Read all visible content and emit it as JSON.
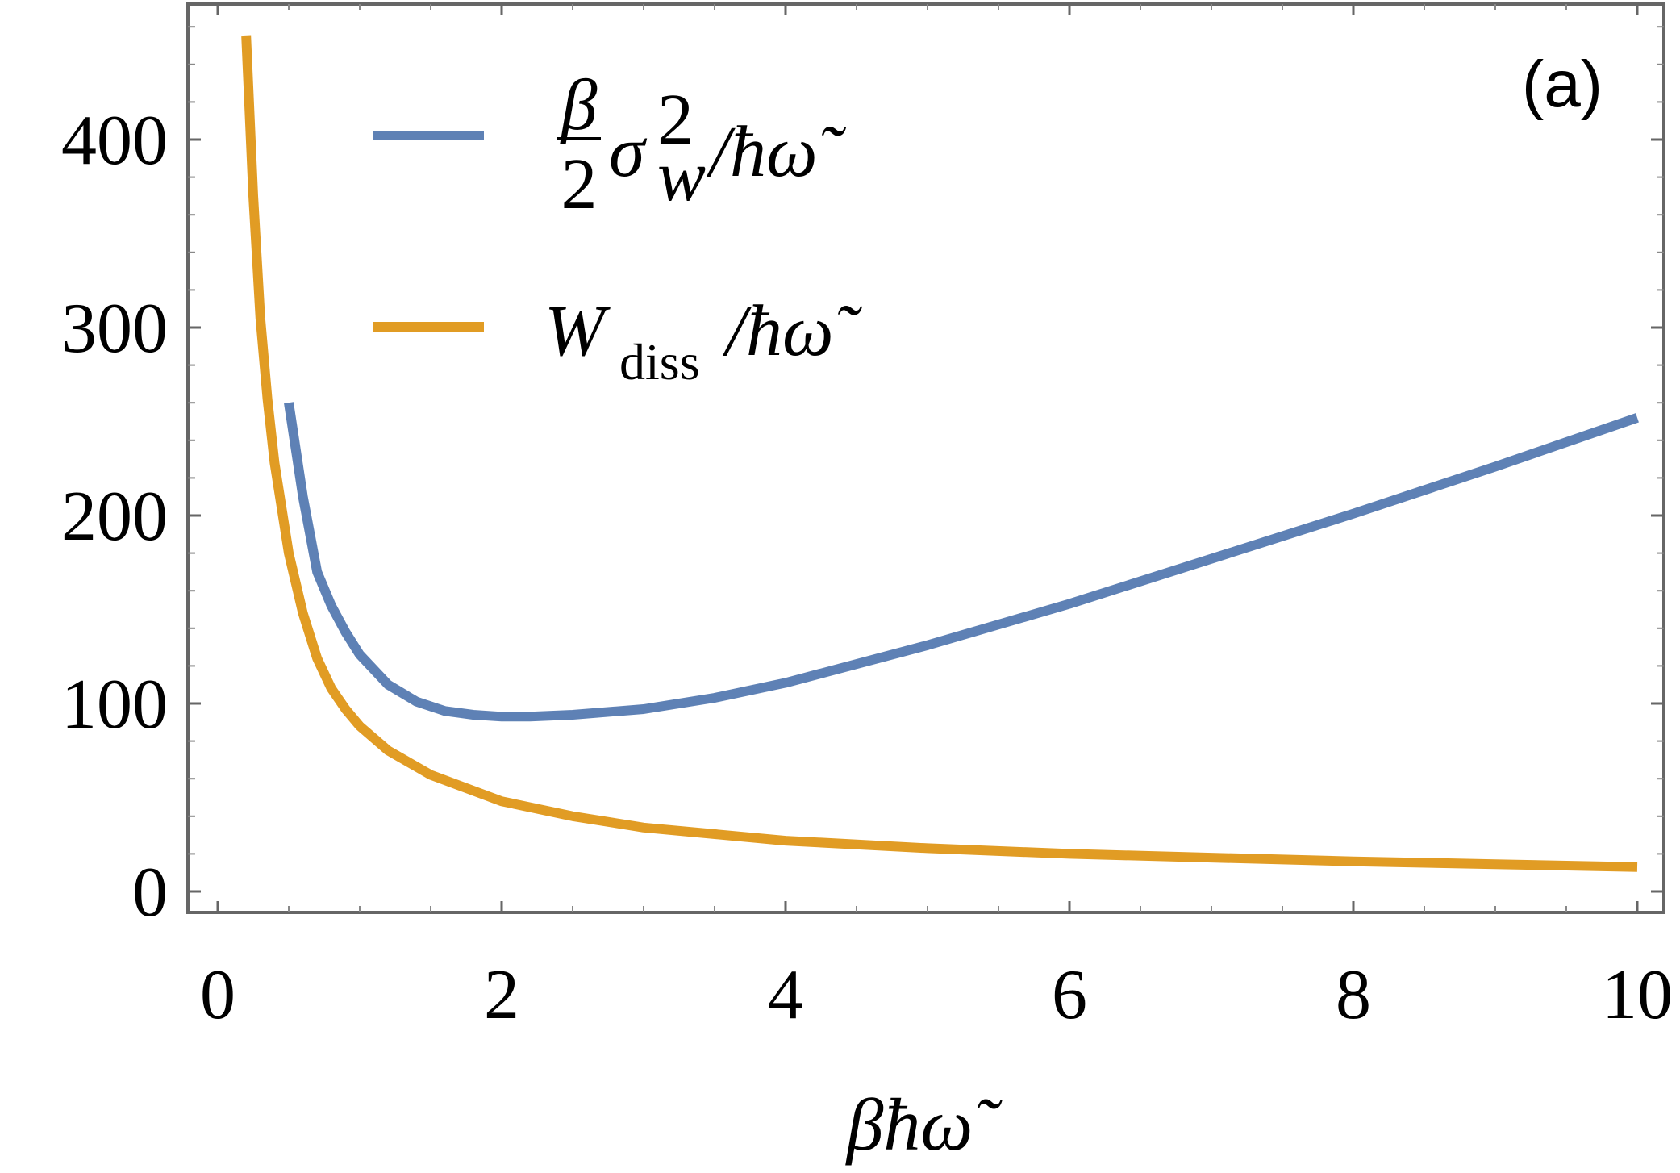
{
  "chart_data": {
    "type": "line",
    "panel_label": "(a)",
    "xlabel": "βħω̃",
    "ylabel": "",
    "xlim": [
      0,
      10
    ],
    "ylim": [
      -25,
      465
    ],
    "x_ticks": [
      0,
      2,
      4,
      6,
      8,
      10
    ],
    "y_ticks": [
      0,
      100,
      200,
      300,
      400
    ],
    "x_tick_labels": [
      "0",
      "2",
      "4",
      "6",
      "8",
      "10"
    ],
    "y_tick_labels": [
      "0",
      "100",
      "200",
      "300",
      "400"
    ],
    "grid": false,
    "legend_position": "top-left",
    "series": [
      {
        "name": "β/2 σ_w² / ħω̃",
        "legend_label": {
          "frac_num": "β",
          "frac_den": "2",
          "base": "σ",
          "sup": "2",
          "sub": "w",
          "rest": "/ħω̃"
        },
        "color": "#5e81b5",
        "x": [
          0.5,
          0.6,
          0.7,
          0.8,
          0.9,
          1.0,
          1.2,
          1.4,
          1.6,
          1.8,
          2.0,
          2.2,
          2.5,
          3.0,
          3.5,
          4.0,
          5.0,
          6.0,
          7.0,
          8.0,
          9.0,
          10.0
        ],
        "y": [
          260,
          210,
          170,
          152,
          138,
          126,
          110,
          101,
          96,
          94,
          93,
          93,
          94,
          97,
          103,
          111,
          131,
          153,
          177,
          201,
          226,
          252
        ]
      },
      {
        "name": "W_diss / ħω̃",
        "legend_label": {
          "base": "W",
          "sub": "diss",
          "rest": "/ħω̃"
        },
        "color": "#e19c24",
        "x": [
          0.2,
          0.25,
          0.3,
          0.35,
          0.4,
          0.5,
          0.6,
          0.7,
          0.8,
          0.9,
          1.0,
          1.2,
          1.5,
          2.0,
          2.5,
          3.0,
          4.0,
          5.0,
          6.0,
          7.0,
          8.0,
          9.0,
          10.0
        ],
        "y": [
          455,
          370,
          305,
          262,
          228,
          180,
          148,
          124,
          108,
          97,
          88,
          75,
          62,
          48,
          40,
          34,
          27,
          23,
          20,
          18,
          16,
          14.5,
          13
        ]
      }
    ]
  }
}
